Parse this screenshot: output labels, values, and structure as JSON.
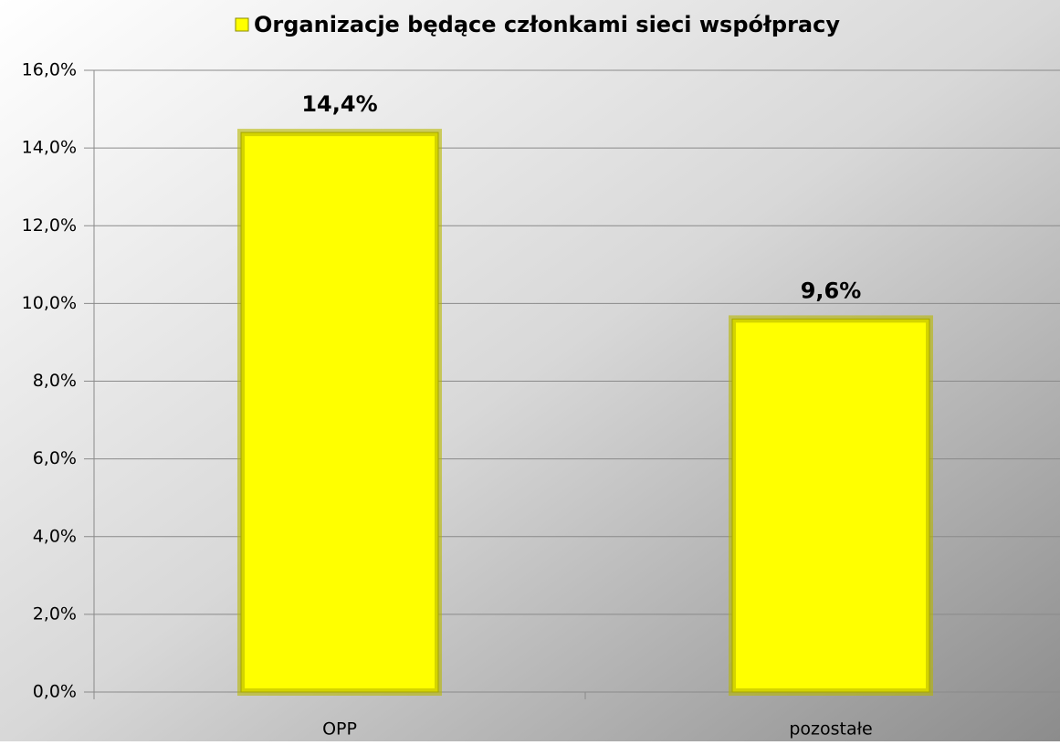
{
  "chart_data": {
    "type": "bar",
    "categories": [
      "OPP",
      "pozostałe"
    ],
    "series": [
      {
        "name": "Organizacje będące członkami sieci współpracy",
        "color": "#ffff00",
        "values": [
          14.4,
          9.6
        ],
        "value_labels": [
          "14,4%",
          "9,6%"
        ]
      }
    ],
    "ylim": [
      0,
      16
    ],
    "yticks": [
      {
        "value": 0,
        "label": "0,0%"
      },
      {
        "value": 2,
        "label": "2,0%"
      },
      {
        "value": 4,
        "label": "4,0%"
      },
      {
        "value": 6,
        "label": "6,0%"
      },
      {
        "value": 8,
        "label": "8,0%"
      },
      {
        "value": 10,
        "label": "10,0%"
      },
      {
        "value": 12,
        "label": "12,0%"
      },
      {
        "value": 14,
        "label": "14,0%"
      },
      {
        "value": 16,
        "label": "16,0%"
      }
    ],
    "grid": true,
    "legend": "top"
  }
}
